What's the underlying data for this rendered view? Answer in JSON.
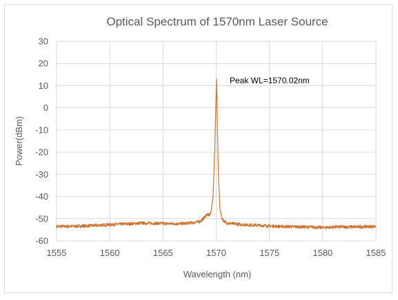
{
  "chart_data": {
    "type": "line",
    "title": "Optical Spectrum of 1570nm Laser Source",
    "xlabel": "Wavelength (nm)",
    "ylabel": "Power(dBm)",
    "xlim": [
      1555,
      1585
    ],
    "ylim": [
      -60,
      30
    ],
    "xticks": [
      1555,
      1560,
      1565,
      1570,
      1575,
      1580,
      1585
    ],
    "yticks": [
      30,
      20,
      10,
      0,
      -10,
      -20,
      -30,
      -40,
      -50,
      -60
    ],
    "grid": true,
    "legend": "none",
    "annotation": "Peak WL=1570.02nm",
    "series": [
      {
        "color": "#d0732f",
        "x": [
          1555,
          1556,
          1557,
          1558,
          1559,
          1560,
          1561,
          1562,
          1563,
          1564,
          1565,
          1566,
          1567,
          1567.8,
          1568.5,
          1568.9,
          1569.1,
          1569.3,
          1569.5,
          1569.7,
          1569.85,
          1569.95,
          1570.02,
          1570.1,
          1570.2,
          1570.35,
          1570.5,
          1570.7,
          1571,
          1572,
          1573,
          1574,
          1575,
          1576,
          1577,
          1578,
          1579,
          1580,
          1581,
          1582,
          1583,
          1584,
          1585
        ],
        "y": [
          -53.5,
          -53.5,
          -53.4,
          -53.2,
          -53,
          -52.7,
          -52.5,
          -52.3,
          -52,
          -52.1,
          -52.2,
          -52.3,
          -52.2,
          -51.8,
          -51.2,
          -49.5,
          -48,
          -48.5,
          -47.5,
          -40,
          -20,
          -2,
          13,
          -5,
          -30,
          -45,
          -49.5,
          -51,
          -52,
          -52.5,
          -52.8,
          -53,
          -53.3,
          -53.5,
          -53.6,
          -53.7,
          -53.8,
          -54,
          -53.8,
          -53.7,
          -53.7,
          -53.6,
          -53.5
        ]
      }
    ]
  }
}
